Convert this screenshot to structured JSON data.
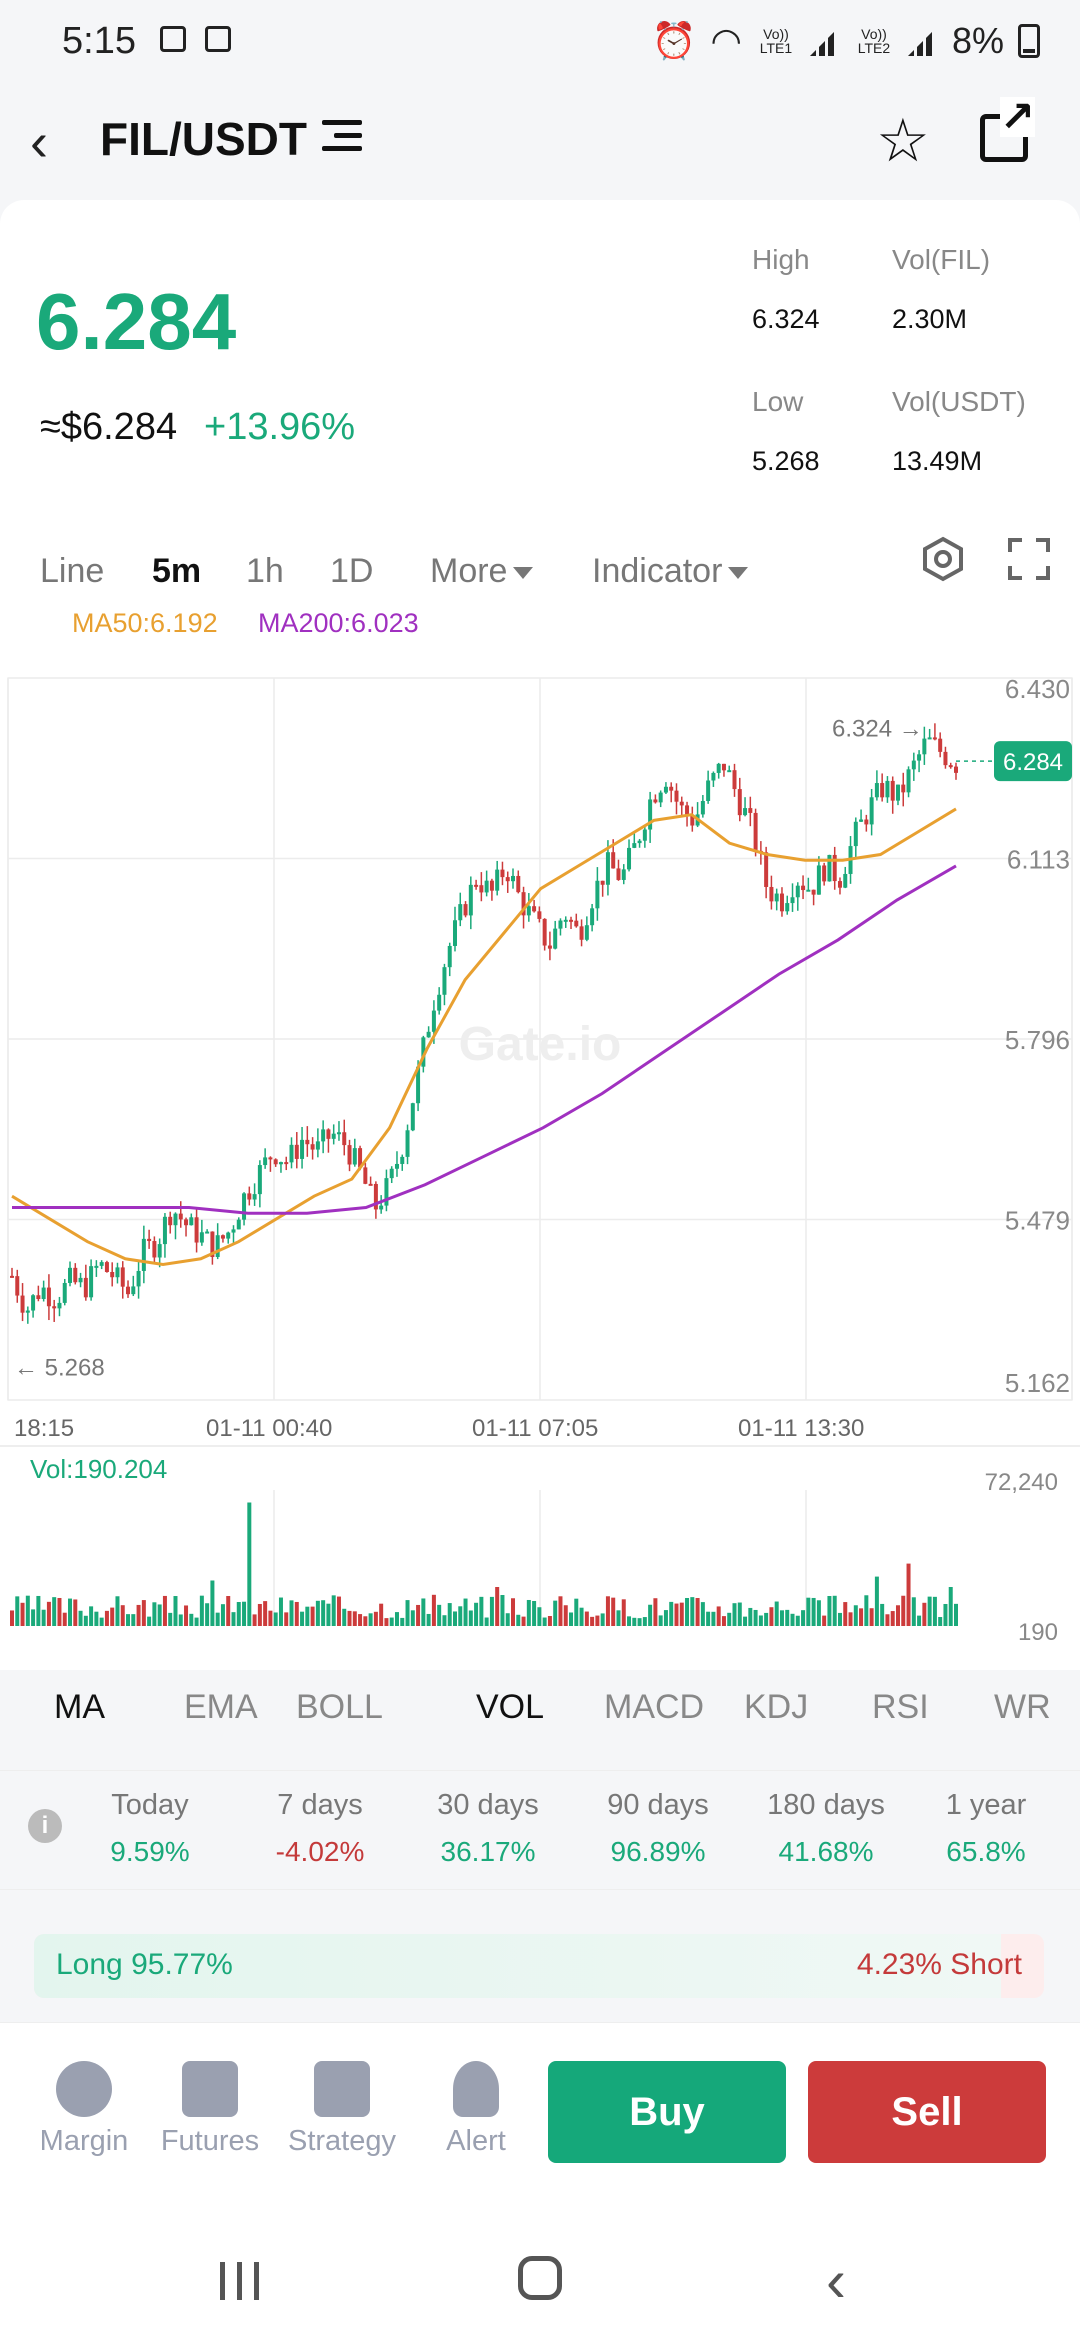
{
  "status": {
    "time": "5:15",
    "battery": "8%",
    "sim1": "Vo)) LTE1",
    "sim2": "Vo)) LTE2"
  },
  "header": {
    "pair": "FIL/USDT"
  },
  "ticker": {
    "price": "6.284",
    "usd": "≈$6.284",
    "change": "+13.96%",
    "high_label": "High",
    "high": "6.324",
    "low_label": "Low",
    "low": "5.268",
    "vol_fil_label": "Vol(FIL)",
    "vol_fil": "2.30M",
    "vol_usdt_label": "Vol(USDT)",
    "vol_usdt": "13.49M"
  },
  "tabs": {
    "line": "Line",
    "m5": "5m",
    "h1": "1h",
    "d1": "1D",
    "more": "More",
    "indicator": "Indicator"
  },
  "ma_legend": {
    "ma50": "MA50:6.192",
    "ma200": "MA200:6.023"
  },
  "chart_data": {
    "type": "candlestick",
    "y_ticks": [
      "6.430",
      "6.113",
      "5.796",
      "5.479",
      "5.162"
    ],
    "ylim": [
      5.162,
      6.43
    ],
    "x_ticks": [
      "18:15",
      "01-11 00:40",
      "01-11 07:05",
      "01-11 13:30"
    ],
    "current_price": "6.284",
    "high_marker": "6.324",
    "low_marker": "5.268",
    "watermark": "Gate.io",
    "price_path": [
      5.38,
      5.32,
      5.36,
      5.34,
      5.37,
      5.36,
      5.4,
      5.38,
      5.35,
      5.42,
      5.44,
      5.5,
      5.47,
      5.45,
      5.43,
      5.46,
      5.52,
      5.56,
      5.6,
      5.58,
      5.62,
      5.6,
      5.63,
      5.61,
      5.56,
      5.5,
      5.54,
      5.62,
      5.74,
      5.86,
      5.95,
      6.02,
      6.08,
      6.05,
      6.1,
      6.04,
      6.0,
      5.96,
      6.02,
      5.98,
      6.05,
      6.1,
      6.08,
      6.14,
      6.22,
      6.26,
      6.2,
      6.18,
      6.24,
      6.28,
      6.22,
      6.16,
      6.06,
      6.04,
      6.08,
      6.06,
      6.1,
      6.08,
      6.15,
      6.2,
      6.24,
      6.22,
      6.27,
      6.32,
      6.3,
      6.28
    ],
    "ma50": [
      5.52,
      5.48,
      5.44,
      5.41,
      5.4,
      5.41,
      5.44,
      5.48,
      5.52,
      5.55,
      5.64,
      5.78,
      5.9,
      5.98,
      6.06,
      6.1,
      6.14,
      6.18,
      6.19,
      6.14,
      6.12,
      6.11,
      6.11,
      6.12,
      6.16,
      6.2
    ],
    "ma200": [
      5.5,
      5.5,
      5.5,
      5.5,
      5.49,
      5.49,
      5.5,
      5.54,
      5.59,
      5.64,
      5.7,
      5.77,
      5.84,
      5.91,
      5.97,
      6.04,
      6.1
    ],
    "vol_label": "Vol:190.204",
    "vol_max_tick": "72,240",
    "vol_min_tick": "190"
  },
  "indicators": {
    "ma": "MA",
    "ema": "EMA",
    "boll": "BOLL",
    "vol": "VOL",
    "macd": "MACD",
    "kdj": "KDJ",
    "rsi": "RSI",
    "wr": "WR"
  },
  "performance": [
    {
      "label": "Today",
      "value": "9.59%",
      "color": "#1aa97a"
    },
    {
      "label": "7 days",
      "value": "-4.02%",
      "color": "#c43a3a"
    },
    {
      "label": "30 days",
      "value": "36.17%",
      "color": "#1aa97a"
    },
    {
      "label": "90 days",
      "value": "96.89%",
      "color": "#1aa97a"
    },
    {
      "label": "180 days",
      "value": "41.68%",
      "color": "#1aa97a"
    },
    {
      "label": "1 year",
      "value": "65.8%",
      "color": "#1aa97a"
    }
  ],
  "long_short": {
    "long": "Long 95.77%",
    "short": "4.23% Short",
    "long_fraction": 0.9577
  },
  "bottom": {
    "margin": "Margin",
    "futures": "Futures",
    "strategy": "Strategy",
    "alert": "Alert",
    "buy": "Buy",
    "sell": "Sell"
  },
  "colors": {
    "up": "#1aa97a",
    "down": "#cc3b3b",
    "ma50": "#e8a030",
    "ma200": "#a030c0"
  }
}
